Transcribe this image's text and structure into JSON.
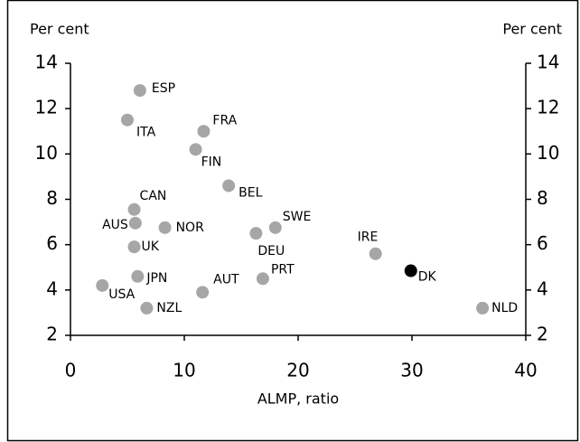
{
  "chart_data": {
    "type": "scatter",
    "y_label": "Per cent",
    "x_label": "ALMP, ratio",
    "labels": [
      "ESP",
      "ITA",
      "FRA",
      "FIN",
      "BEL",
      "CAN",
      "AUS",
      "NOR",
      "SWE",
      "DEU",
      "UK",
      "IRE",
      "DK",
      "JPN",
      "PRT",
      "USA",
      "AUT",
      "NZL",
      "NLD"
    ],
    "x": [
      6.1,
      5.0,
      11.7,
      11.0,
      13.9,
      5.6,
      5.7,
      8.3,
      18.0,
      16.3,
      5.6,
      26.8,
      29.9,
      5.9,
      16.9,
      2.8,
      11.6,
      6.7,
      36.2
    ],
    "values": [
      12.8,
      11.5,
      11.0,
      10.2,
      8.6,
      7.55,
      6.95,
      6.75,
      6.75,
      6.5,
      5.9,
      5.6,
      4.85,
      4.6,
      4.5,
      4.2,
      3.9,
      3.2,
      3.2
    ],
    "colors": [
      "#a6a6a6",
      "#a6a6a6",
      "#a6a6a6",
      "#a6a6a6",
      "#a6a6a6",
      "#a6a6a6",
      "#a6a6a6",
      "#a6a6a6",
      "#a6a6a6",
      "#a6a6a6",
      "#a6a6a6",
      "#a6a6a6",
      "#000000",
      "#a6a6a6",
      "#a6a6a6",
      "#a6a6a6",
      "#a6a6a6",
      "#a6a6a6",
      "#a6a6a6"
    ],
    "xlim": [
      0,
      40
    ],
    "xticks": [
      0,
      10,
      20,
      30,
      40
    ],
    "ylim": [
      2,
      14
    ],
    "yticks": [
      2,
      4,
      6,
      8,
      10,
      12,
      14
    ]
  }
}
